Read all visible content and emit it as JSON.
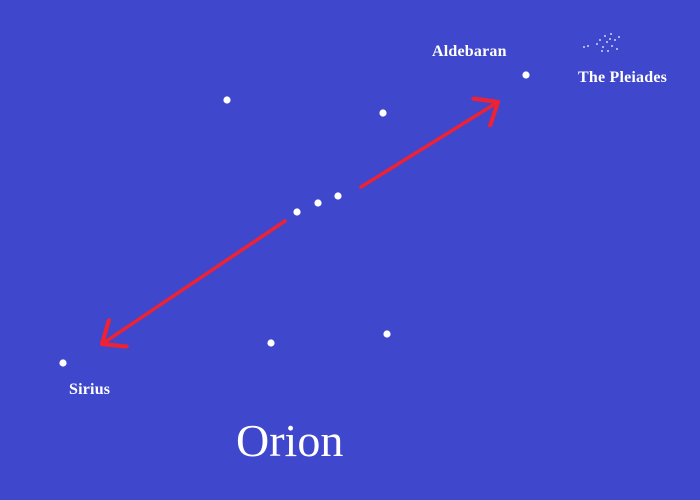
{
  "colors": {
    "background": "#3f47cc",
    "star": "#ffffff",
    "arrow": "#ee2233"
  },
  "labels": {
    "title": "Orion",
    "aldebaran": "Aldebaran",
    "pleiades": "The Pleiades",
    "sirius": "Sirius"
  }
}
